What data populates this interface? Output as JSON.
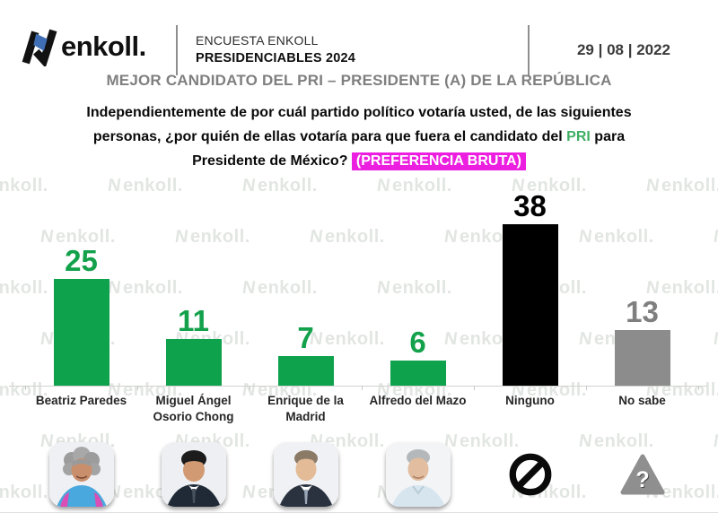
{
  "header": {
    "logo_text": "enkoll.",
    "survey_label": "ENCUESTA ENKOLL",
    "survey_name": "PRESIDENCIABLES 2024",
    "date": "29 | 08 | 2022"
  },
  "title": "MEJOR CANDIDATO DEL PRI – PRESIDENTE (A) DE LA REPÚBLICA",
  "question": {
    "line1": "Independientemente de por cuál partido político votaría usted, de las siguientes",
    "line2_before": "personas, ¿por quién de ellas votaría para que fuera el candidato del ",
    "party": "PRI",
    "line2_after": " para",
    "line3_before": "Presidente de México? ",
    "highlight": "(PREFERENCIA BRUTA)"
  },
  "watermark_mark": "N",
  "watermark_text": "enkoll.",
  "colors": {
    "bar_green": "#0fa24c",
    "bar_black": "#000000",
    "bar_gray": "#8c8c8c",
    "value_green": "#13a14b",
    "value_black": "#000000",
    "value_gray": "#7f7f7f",
    "party_green": "#3fae63",
    "highlight_magenta": "#ec1fe0",
    "title_gray": "#7f7f7f",
    "logo_blue": "#3f6eb5"
  },
  "chart_data": {
    "type": "bar",
    "title": "MEJOR CANDIDATO DEL PRI – PRESIDENTE (A) DE LA REPÚBLICA",
    "subtitle": "PREFERENCIA BRUTA",
    "categories": [
      "Beatriz Paredes",
      "Miguel Ángel Osorio Chong",
      "Enrique de la Madrid",
      "Alfredo del Mazo",
      "Ninguno",
      "No sabe"
    ],
    "values": [
      25,
      11,
      7,
      6,
      38,
      13
    ],
    "unit": "percent",
    "ylim": [
      0,
      40
    ],
    "grid": false,
    "legend": false,
    "bar_colors": [
      "#0fa24c",
      "#0fa24c",
      "#0fa24c",
      "#0fa24c",
      "#000000",
      "#8c8c8c"
    ],
    "label_colors": [
      "#13a14b",
      "#13a14b",
      "#13a14b",
      "#13a14b",
      "#000000",
      "#7f7f7f"
    ],
    "category_icons": [
      "photo-beatriz-paredes",
      "photo-miguel-angel-osorio-chong",
      "photo-enrique-de-la-madrid",
      "photo-alfredo-del-mazo",
      "prohibited-icon",
      "question-mark-triangle-icon"
    ]
  }
}
